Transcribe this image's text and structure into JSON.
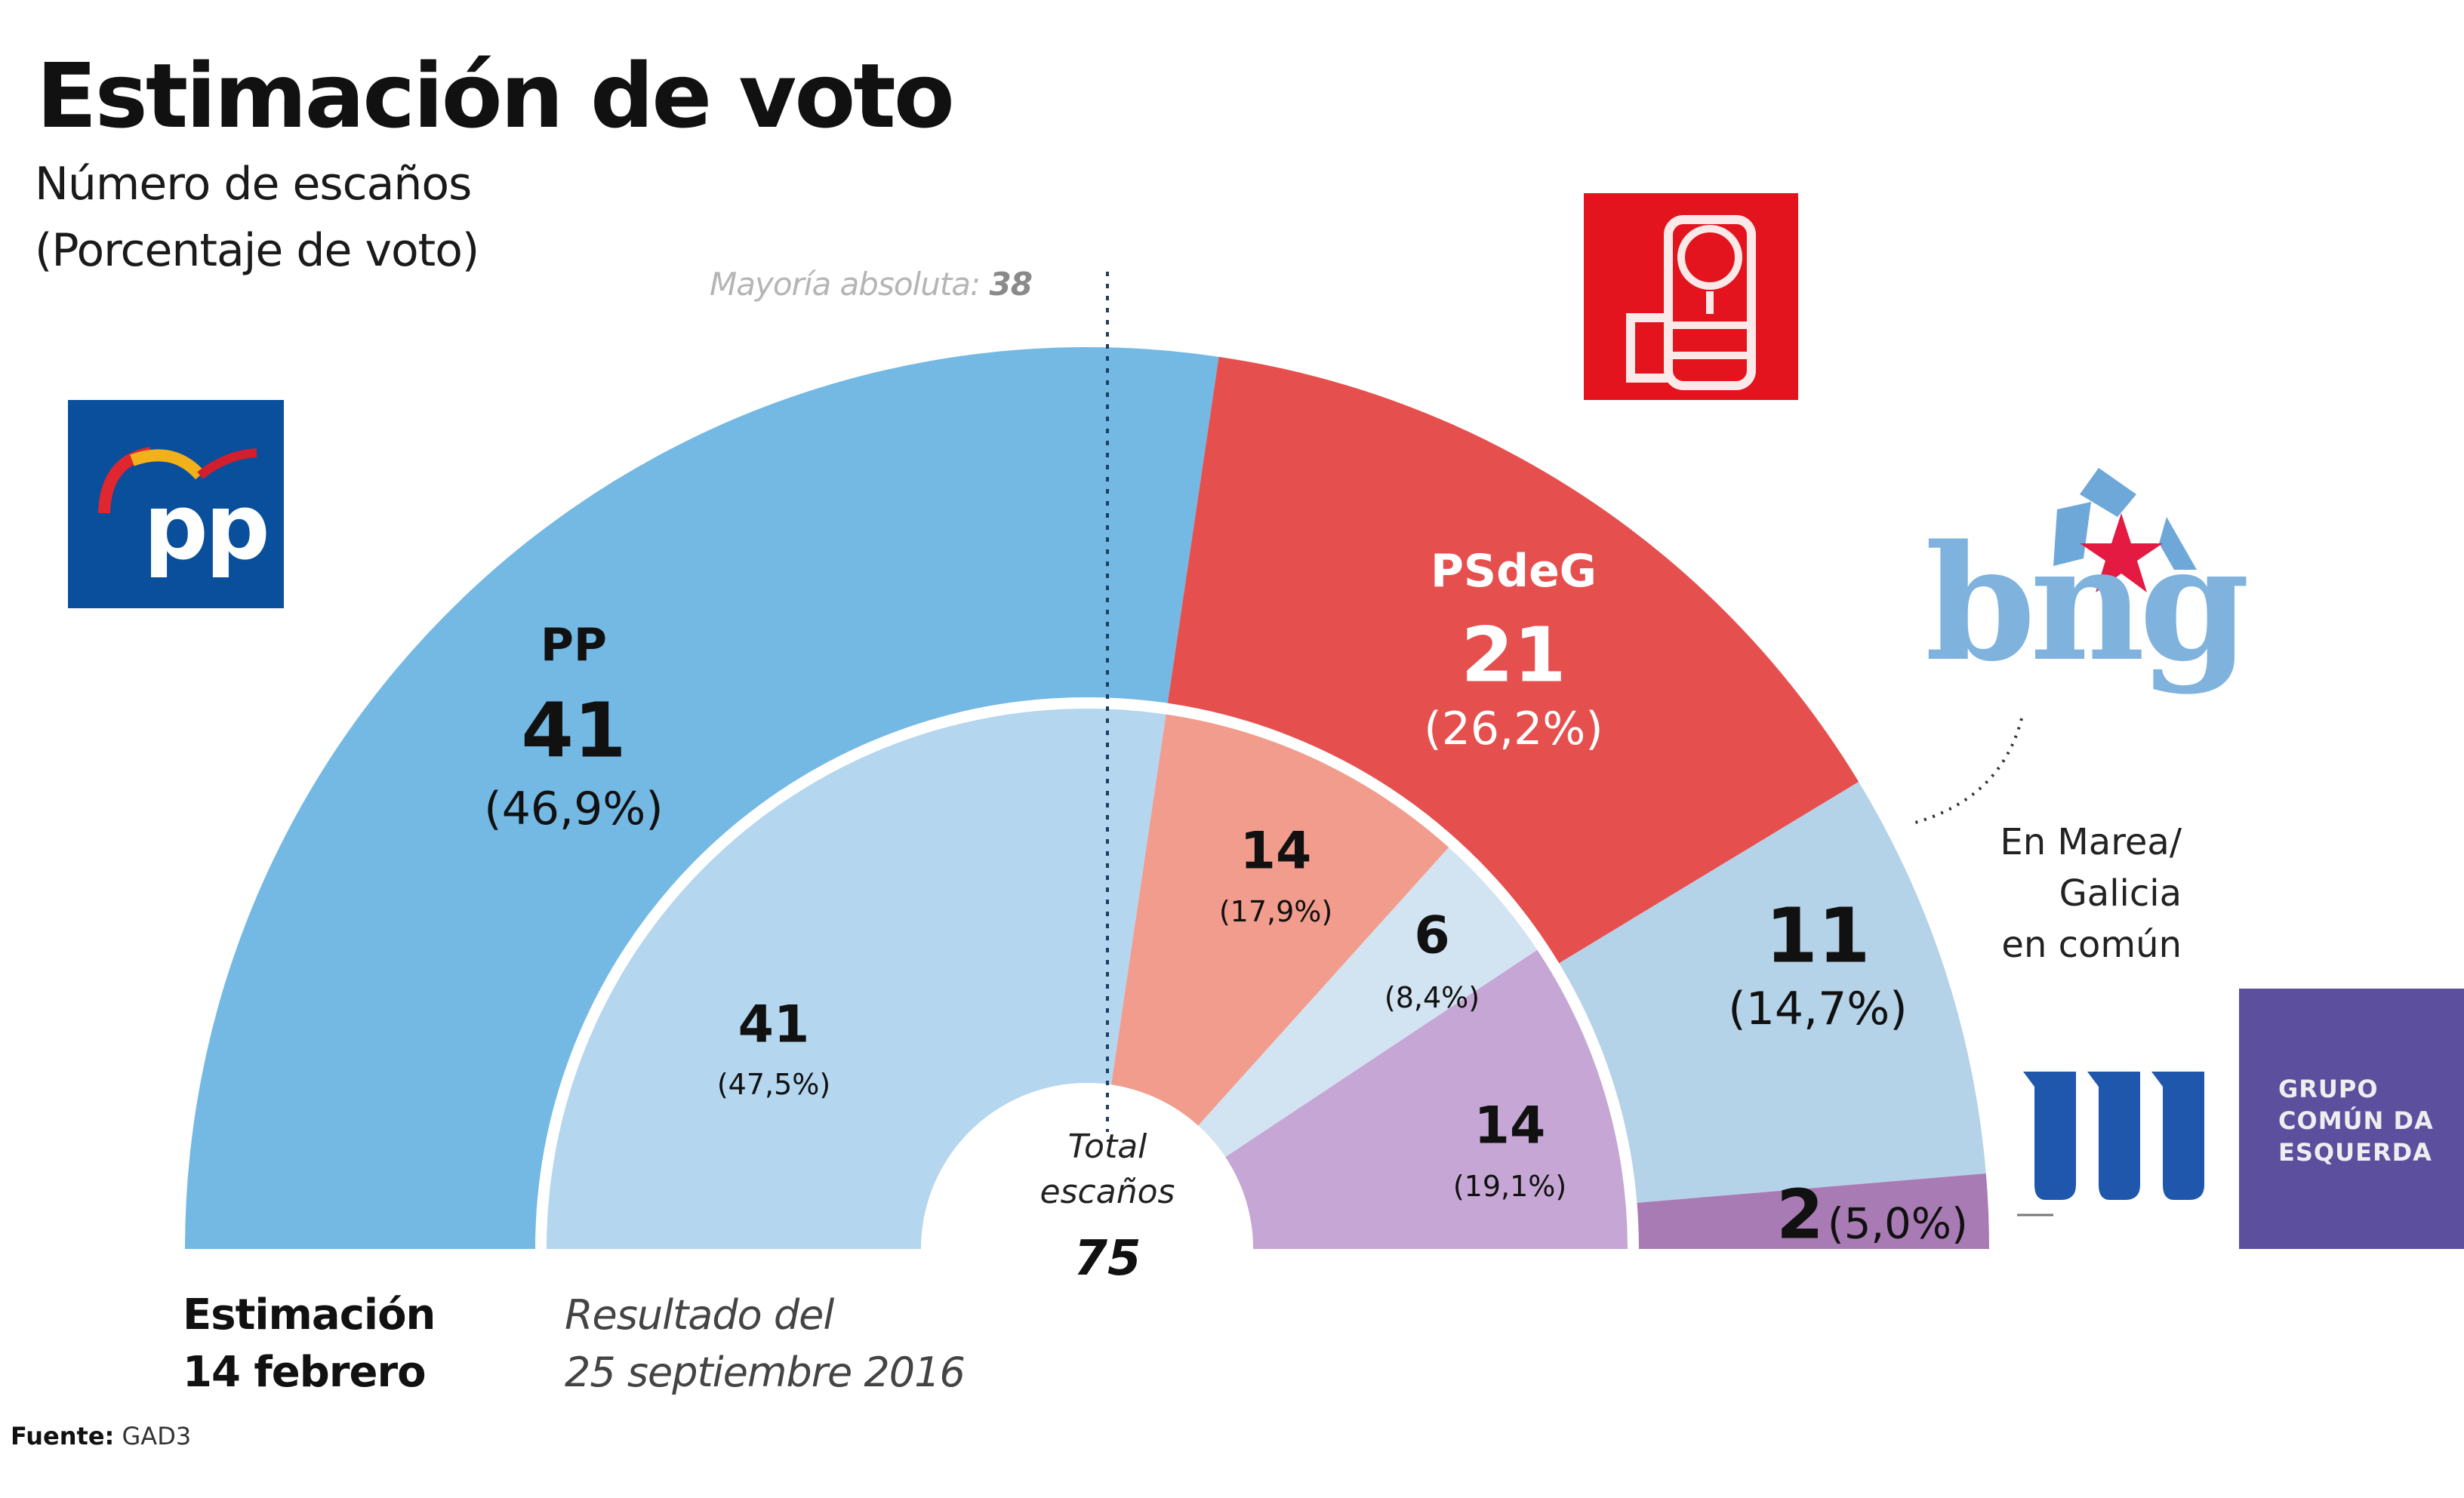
{
  "header": {
    "title": "Estimación de voto",
    "subtitle_line1": "Número de escaños",
    "subtitle_line2": "(Porcentaje de voto)",
    "majority_label": "Mayoría absoluta:",
    "majority_value": "38"
  },
  "center": {
    "label_line1": "Total",
    "label_line2": "escaños",
    "total": "75"
  },
  "captions": {
    "outer_line1": "Estimación",
    "outer_line2": "14 febrero",
    "inner_line1": "Resultado del",
    "inner_line2": "25 septiembre 2016"
  },
  "source": {
    "label": "Fuente:",
    "value": "GAD3"
  },
  "side_labels": {
    "en_marea_line1": "En Marea/",
    "en_marea_line2": "Galicia",
    "en_marea_line3": "en común",
    "gce_line1": "GRUPO",
    "gce_line2": "COMÚN DA",
    "gce_line3": "ESQUERDA",
    "pp_logo_text": "pp",
    "bng_logo_text": "bng"
  },
  "chart_data": {
    "type": "pie",
    "subtype": "nested-semicircle-parliament",
    "title": "Estimación de voto",
    "subtitle": "Número de escaños (Porcentaje de voto)",
    "total_seats": 75,
    "majority": 38,
    "series": [
      {
        "name": "Estimación 14 febrero",
        "ring": "outer",
        "categories": [
          "PP",
          "PSdeG",
          "BNG",
          "Grupo Común da Esquerda"
        ],
        "seats": [
          41,
          21,
          11,
          2
        ],
        "percent": [
          46.9,
          26.2,
          14.7,
          5.0
        ],
        "seat_labels": [
          "41",
          "21",
          "11",
          "2"
        ],
        "percent_labels": [
          "(46,9%)",
          "(26,2%)",
          "(14,7%)",
          "(5,0%)"
        ],
        "colors": [
          "#74b9e3",
          "#e5504f",
          "#b4d2e8",
          "#a97bb5"
        ]
      },
      {
        "name": "Resultado del 25 septiembre 2016",
        "ring": "inner",
        "categories": [
          "PP",
          "PSdeG",
          "BNG",
          "En Marea/Galicia en común"
        ],
        "seats": [
          41,
          14,
          6,
          14
        ],
        "percent": [
          47.5,
          17.9,
          8.4,
          19.1
        ],
        "seat_labels": [
          "41",
          "14",
          "6",
          "14"
        ],
        "percent_labels": [
          "(47,5%)",
          "(17,9%)",
          "(8,4%)",
          "(19,1%)"
        ],
        "colors": [
          "#b4d6ee",
          "#f19c8c",
          "#d2e3f1",
          "#c5a6d4"
        ]
      }
    ],
    "outer_name_labels": [
      "PP",
      "PSdeG"
    ]
  }
}
